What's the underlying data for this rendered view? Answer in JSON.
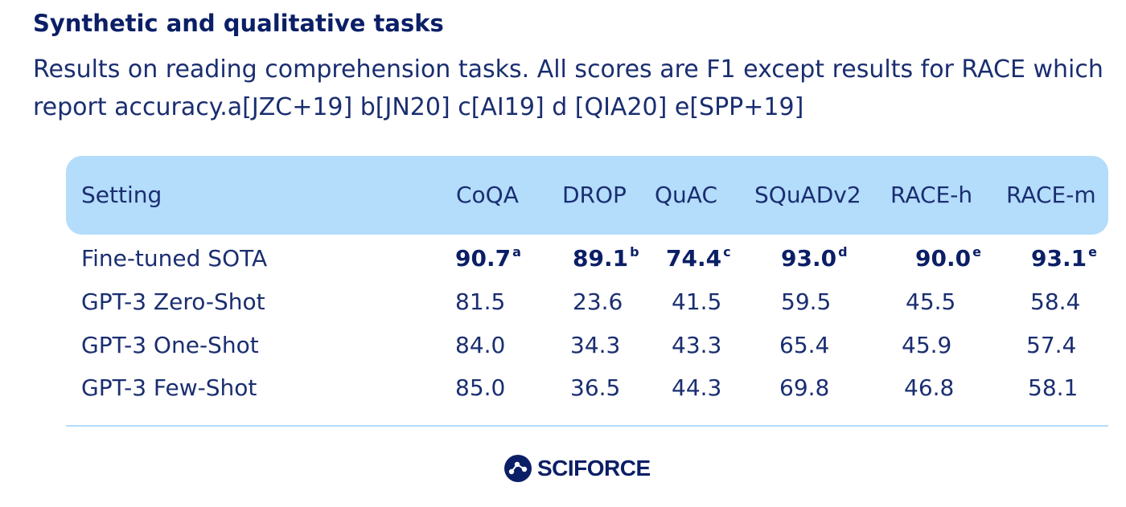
{
  "title": "Synthetic and qualitative tasks",
  "subtitle_line1": "Results on reading comprehension tasks. All scores are F1 except results for RACE which",
  "subtitle_line2": "report accuracy.a[JZC+19] b[JN20] c[AI19] d [QIA20] e[SPP+19]",
  "table": {
    "headers": [
      "Setting",
      "CoQA",
      "DROP",
      "QuAC",
      "SQuADv2",
      "RACE-h",
      "RACE-m"
    ],
    "rows": [
      {
        "setting": "Fine-tuned SOTA",
        "bold": true,
        "values": [
          "90.7",
          "89.1",
          "74.4",
          "93.0",
          "90.0",
          "93.1"
        ],
        "sups": [
          "a",
          "b",
          "c",
          "d",
          "e",
          "e"
        ]
      },
      {
        "setting": "GPT-3 Zero-Shot",
        "bold": false,
        "values": [
          "81.5",
          "23.6",
          "41.5",
          "59.5",
          "45.5",
          "58.4"
        ]
      },
      {
        "setting": "GPT-3 One-Shot",
        "bold": false,
        "values": [
          "84.0",
          "34.3",
          "43.3",
          "65.4",
          "45.9",
          "57.4"
        ]
      },
      {
        "setting": "GPT-3 Few-Shot",
        "bold": false,
        "values": [
          "85.0",
          "36.5",
          "44.3",
          "69.8",
          "46.8",
          "58.1"
        ]
      }
    ]
  },
  "logo": {
    "text": "SCIFORCE",
    "icon": "sciforce-logo-icon"
  },
  "colors": {
    "text": "#0b1f66",
    "header_bg": "#b4dcfb",
    "divider": "#b4dcfb"
  }
}
